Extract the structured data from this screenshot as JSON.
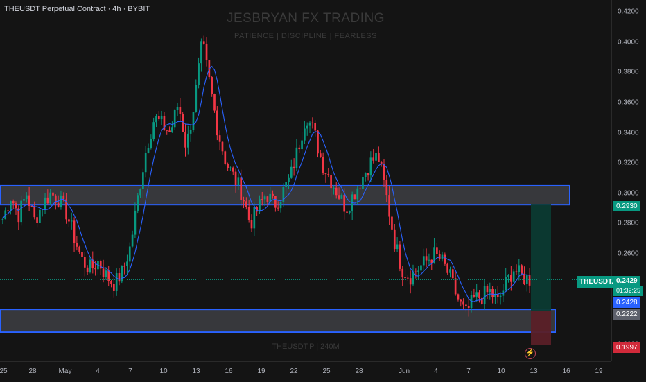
{
  "header": {
    "title": "THEUSDT Perpetual Contract · 4h · BYBIT"
  },
  "watermark": {
    "main": "JESBRYAN FX TRADING",
    "sub": "PATIENCE  |  DISCIPLINE  |  FEARLESS",
    "bottom": "THEUSDT.P | 240M"
  },
  "y_axis": {
    "ticks": [
      "0.4200",
      "0.4000",
      "0.3800",
      "0.3600",
      "0.3400",
      "0.3200",
      "0.3000",
      "0.2800",
      "0.2600",
      "0.2400",
      "0.2200",
      "0.2000"
    ]
  },
  "x_axis": {
    "ticks": [
      "25",
      "28",
      "May",
      "4",
      "7",
      "10",
      "13",
      "16",
      "19",
      "22",
      "25",
      "28",
      "Jun",
      "4",
      "7",
      "10",
      "13",
      "16",
      "19"
    ]
  },
  "price_labels": {
    "target": "0.2930",
    "symbol": "THEUSDT.P",
    "last": "0.2429",
    "countdown": "01:32:25",
    "blue": "0.2428",
    "gray": "0.2222",
    "stop": "0.1997"
  },
  "colors": {
    "up": "#089981",
    "down": "#f23645",
    "ma": "#2962ff",
    "zone_border": "#2962ff",
    "target_zone": "#0b3a32",
    "stop_zone": "#5a1f27"
  },
  "icons": {
    "alert": "flash-icon"
  },
  "chart_data": {
    "type": "candlestick",
    "title": "THEUSDT Perpetual Contract · 4h · BYBIT",
    "ylim": [
      0.195,
      0.425
    ],
    "timeframe": "4h",
    "candles_sampled_close": [
      0.283,
      0.298,
      0.286,
      0.3,
      0.282,
      0.293,
      0.3,
      0.296,
      0.287,
      0.27,
      0.255,
      0.25,
      0.255,
      0.245,
      0.24,
      0.248,
      0.265,
      0.3,
      0.33,
      0.35,
      0.345,
      0.34,
      0.36,
      0.33,
      0.36,
      0.4,
      0.37,
      0.34,
      0.32,
      0.31,
      0.3,
      0.28,
      0.29,
      0.3,
      0.292,
      0.3,
      0.31,
      0.33,
      0.352,
      0.34,
      0.32,
      0.31,
      0.3,
      0.29,
      0.3,
      0.31,
      0.32,
      0.325,
      0.3,
      0.27,
      0.25,
      0.245,
      0.25,
      0.255,
      0.26,
      0.255,
      0.245,
      0.23,
      0.22,
      0.23,
      0.232,
      0.235,
      0.228,
      0.24,
      0.25,
      0.245,
      0.243
    ],
    "zones": [
      {
        "name": "resistance",
        "top": 0.305,
        "bottom": 0.2925
      },
      {
        "name": "support",
        "top": 0.2233,
        "bottom": 0.2082
      }
    ],
    "position": {
      "entry": 0.2222,
      "target": 0.293,
      "stop": 0.1997
    },
    "last_price": 0.2429
  }
}
